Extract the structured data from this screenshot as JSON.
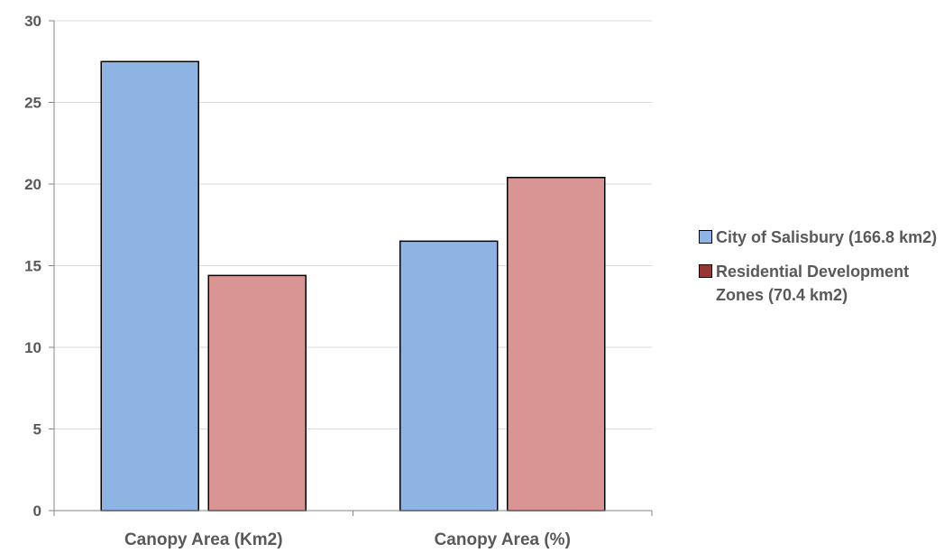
{
  "chart_data": {
    "type": "bar",
    "categories": [
      "Canopy Area (Km2)",
      "Canopy Area (%)"
    ],
    "series": [
      {
        "name": "City of Salisbury (166.8 km2)",
        "values": [
          27.5,
          16.5
        ],
        "color": "#8eb4e3"
      },
      {
        "name": "Residential Development Zones (70.4 km2)",
        "values": [
          14.4,
          20.4
        ],
        "color": "#d99594"
      }
    ],
    "yticks": [
      0,
      5,
      10,
      15,
      20,
      25,
      30
    ],
    "ylim": [
      0,
      30
    ],
    "grid": true,
    "legend_position": "right",
    "gridline_color": "#d9d9d9",
    "axis_color": "#868686"
  }
}
